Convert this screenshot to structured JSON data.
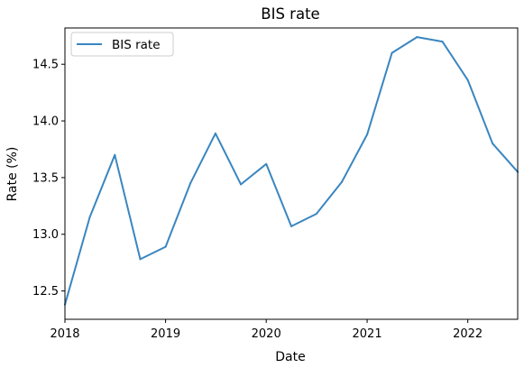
{
  "chart_data": {
    "type": "line",
    "title": "BIS rate",
    "xlabel": "Date",
    "ylabel": "Rate (%)",
    "x_axis": "date",
    "xlim": [
      "2018-01-01",
      "2022-07-01"
    ],
    "ylim": [
      12.25,
      14.82
    ],
    "xticks": [
      "2018",
      "2019",
      "2020",
      "2021",
      "2022"
    ],
    "yticks": [
      "12.5",
      "13.0",
      "13.5",
      "14.0",
      "14.5"
    ],
    "grid": false,
    "legend": {
      "position": "top-left",
      "entries": [
        "BIS rate"
      ]
    },
    "series": [
      {
        "name": "BIS rate",
        "color": "#3a86c0",
        "x": [
          "2018-01-01",
          "2018-04-01",
          "2018-07-01",
          "2018-10-01",
          "2019-01-01",
          "2019-04-01",
          "2019-07-01",
          "2019-10-01",
          "2020-01-01",
          "2020-04-01",
          "2020-07-01",
          "2020-10-01",
          "2021-01-01",
          "2021-04-01",
          "2021-07-01",
          "2021-10-01",
          "2022-01-01",
          "2022-04-01",
          "2022-07-01"
        ],
        "values": [
          12.38,
          13.15,
          13.7,
          12.78,
          12.89,
          13.45,
          13.89,
          13.44,
          13.62,
          13.07,
          13.18,
          13.46,
          13.88,
          14.6,
          14.74,
          14.7,
          14.36,
          13.8,
          13.55
        ]
      }
    ]
  }
}
